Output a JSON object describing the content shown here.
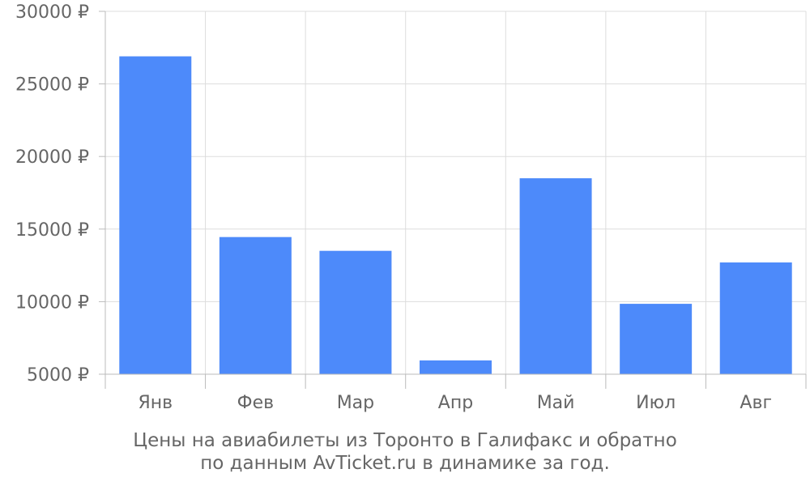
{
  "chart_data": {
    "type": "bar",
    "categories": [
      "Янв",
      "Фев",
      "Мар",
      "Апр",
      "Май",
      "Июл",
      "Авг"
    ],
    "values": [
      26900,
      14450,
      13500,
      5950,
      18500,
      9850,
      12700
    ],
    "ylim": [
      5000,
      30000
    ],
    "yticks": [
      5000,
      10000,
      15000,
      20000,
      25000,
      30000
    ],
    "ytick_labels": [
      "5000 ₽",
      "10000 ₽",
      "15000 ₽",
      "20000 ₽",
      "25000 ₽",
      "30000 ₽"
    ],
    "bar_color": "#4d8afa",
    "grid": true,
    "caption_line1": "Цены на авиабилеты из Торонто в Галифакс и обратно",
    "caption_line2": "по данным AvTicket.ru в динамике за год."
  }
}
